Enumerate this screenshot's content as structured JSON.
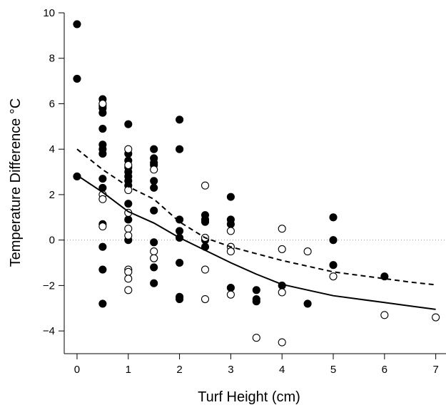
{
  "chart_data": {
    "type": "scatter",
    "title": "",
    "xlabel": "Turf Height (cm)",
    "ylabel": "Temperature Difference °C",
    "xlim": [
      -0.25,
      7.2
    ],
    "ylim": [
      -5,
      10
    ],
    "xticks": [
      0,
      1,
      2,
      3,
      4,
      5,
      6,
      7
    ],
    "yticks": [
      -4,
      -2,
      0,
      2,
      4,
      6,
      8,
      10
    ],
    "reference_line": {
      "y": 0,
      "style": "dotted",
      "color": "#999999"
    },
    "grid": false,
    "series": [
      {
        "marker": "filled-circle",
        "color": "#000000",
        "points": [
          [
            0,
            9.5
          ],
          [
            0,
            7.1
          ],
          [
            0,
            2.8
          ],
          [
            0.5,
            6.2
          ],
          [
            0.5,
            5.9
          ],
          [
            0.5,
            5.8
          ],
          [
            0.5,
            5.6
          ],
          [
            0.5,
            4.9
          ],
          [
            0.5,
            4.2
          ],
          [
            0.5,
            4.0
          ],
          [
            0.5,
            3.8
          ],
          [
            0.5,
            2.7
          ],
          [
            0.5,
            2.3
          ],
          [
            0.5,
            0.7
          ],
          [
            0.5,
            -0.3
          ],
          [
            0.5,
            -1.3
          ],
          [
            0.5,
            -2.8
          ],
          [
            1,
            5.1
          ],
          [
            1,
            3.8
          ],
          [
            1,
            3.5
          ],
          [
            1,
            3.2
          ],
          [
            1,
            3.0
          ],
          [
            1,
            2.8
          ],
          [
            1,
            2.6
          ],
          [
            1,
            2.4
          ],
          [
            1,
            1.6
          ],
          [
            1,
            0.9
          ],
          [
            1,
            0.0
          ],
          [
            1.5,
            4.0
          ],
          [
            1.5,
            3.6
          ],
          [
            1.5,
            3.4
          ],
          [
            1.5,
            3.3
          ],
          [
            1.5,
            2.6
          ],
          [
            1.5,
            2.3
          ],
          [
            1.5,
            1.3
          ],
          [
            1.5,
            -0.1
          ],
          [
            1.5,
            -0.8
          ],
          [
            1.5,
            -1.2
          ],
          [
            1.5,
            -1.9
          ],
          [
            2,
            5.3
          ],
          [
            2,
            4.0
          ],
          [
            2,
            0.9
          ],
          [
            2,
            0.4
          ],
          [
            2,
            0.1
          ],
          [
            2,
            -1.0
          ],
          [
            2,
            -2.5
          ],
          [
            2,
            -2.6
          ],
          [
            2.5,
            1.1
          ],
          [
            2.5,
            0.9
          ],
          [
            2.5,
            0.8
          ],
          [
            2.5,
            0.0
          ],
          [
            2.5,
            -0.3
          ],
          [
            3,
            1.9
          ],
          [
            3,
            0.9
          ],
          [
            3,
            0.7
          ],
          [
            3,
            -2.1
          ],
          [
            3.5,
            -2.2
          ],
          [
            3.5,
            -2.6
          ],
          [
            3.5,
            -2.7
          ],
          [
            4,
            -2.0
          ],
          [
            4.5,
            -2.8
          ],
          [
            5,
            1.0
          ],
          [
            5,
            0.0
          ],
          [
            5,
            -1.1
          ],
          [
            6,
            -1.6
          ]
        ]
      },
      {
        "marker": "open-circle",
        "color": "#000000",
        "points": [
          [
            0.5,
            6.0
          ],
          [
            0.5,
            2.0
          ],
          [
            0.5,
            1.8
          ],
          [
            0.5,
            0.6
          ],
          [
            1,
            4.0
          ],
          [
            1,
            3.3
          ],
          [
            1,
            2.2
          ],
          [
            1,
            1.2
          ],
          [
            1,
            0.5
          ],
          [
            1,
            0.2
          ],
          [
            1,
            -1.3
          ],
          [
            1,
            -1.4
          ],
          [
            1,
            -1.7
          ],
          [
            1,
            -2.2
          ],
          [
            1.5,
            3.1
          ],
          [
            1.5,
            -0.5
          ],
          [
            1.5,
            -0.8
          ],
          [
            2.5,
            2.4
          ],
          [
            2.5,
            0.1
          ],
          [
            2.5,
            -1.3
          ],
          [
            2.5,
            -2.6
          ],
          [
            3,
            0.4
          ],
          [
            3,
            -0.3
          ],
          [
            3,
            -0.5
          ],
          [
            3,
            -2.4
          ],
          [
            3.5,
            -4.3
          ],
          [
            4,
            0.5
          ],
          [
            4,
            -0.4
          ],
          [
            4,
            -2.3
          ],
          [
            4,
            -4.5
          ],
          [
            4.5,
            -0.5
          ],
          [
            5,
            -1.6
          ],
          [
            6,
            -3.3
          ],
          [
            7,
            -3.4
          ]
        ]
      }
    ],
    "fit_lines": [
      {
        "style": "solid",
        "color": "#000000",
        "x": [
          0,
          0.5,
          1,
          1.5,
          2,
          2.5,
          3,
          3.5,
          4,
          4.5,
          5,
          5.5,
          6,
          6.5,
          7
        ],
        "y": [
          2.85,
          2.1,
          1.25,
          0.75,
          0.1,
          -0.45,
          -1.0,
          -1.5,
          -1.95,
          -2.2,
          -2.45,
          -2.6,
          -2.75,
          -2.9,
          -3.05
        ]
      },
      {
        "style": "dashed",
        "color": "#000000",
        "x": [
          0,
          0.5,
          1,
          1.5,
          2,
          2.5,
          3,
          3.5,
          4,
          4.5,
          5,
          5.5,
          6,
          6.5,
          7
        ],
        "y": [
          4.0,
          3.1,
          2.35,
          1.8,
          0.8,
          0.1,
          -0.3,
          -0.6,
          -0.9,
          -1.15,
          -1.4,
          -1.55,
          -1.7,
          -1.85,
          -1.97
        ]
      }
    ]
  }
}
